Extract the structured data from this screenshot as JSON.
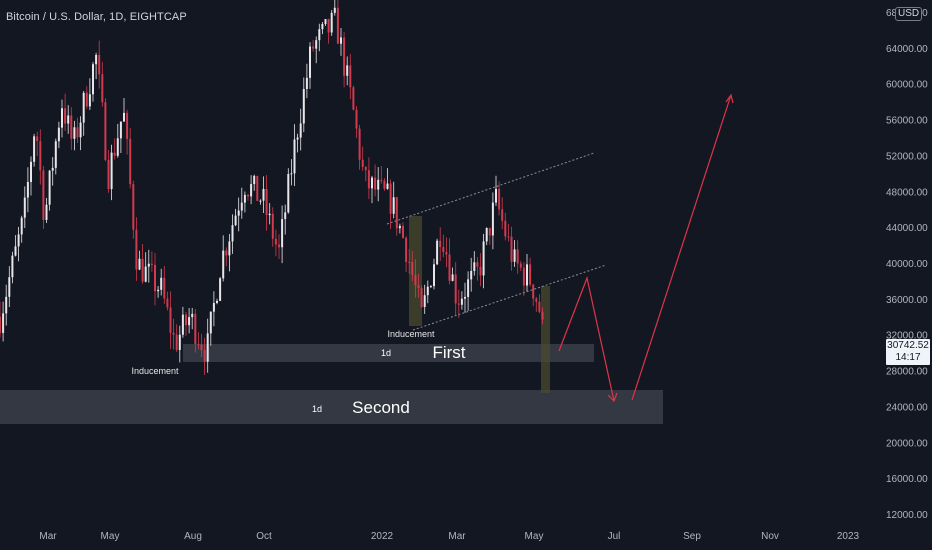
{
  "header": {
    "symbol_title": "Bitcoin / U.S. Dollar, 1D, EIGHTCAP",
    "currency": "USD"
  },
  "last_price": {
    "value": "30742.52",
    "countdown": "14:17"
  },
  "colors": {
    "background": "#131722",
    "candle_up": "#e8e6ea",
    "candle_down": "#d23a4e",
    "drawing": "#e03349",
    "zone": "#3a3d46",
    "axis_text": "#b2b5be"
  },
  "chart_data": {
    "type": "candlestick",
    "title": "Bitcoin / U.S. Dollar, 1D, EIGHTCAP",
    "x_ticks": [
      "Mar",
      "May",
      "Aug",
      "Oct",
      "2022",
      "Mar",
      "May",
      "Jul",
      "Sep",
      "Nov",
      "2023"
    ],
    "y_ticks": [
      "68000.00",
      "64000.00",
      "60000.00",
      "56000.00",
      "52000.00",
      "48000.00",
      "44000.00",
      "40000.00",
      "36000.00",
      "32000.00",
      "28000.00",
      "24000.00",
      "20000.00",
      "16000.00",
      "12000.00"
    ],
    "ylim": [
      12000,
      68000
    ],
    "series_close": [
      {
        "date": "2021-01-20",
        "value": 34000
      },
      {
        "date": "2021-02-10",
        "value": 45000
      },
      {
        "date": "2021-02-20",
        "value": 56000
      },
      {
        "date": "2021-02-28",
        "value": 45000
      },
      {
        "date": "2021-03-15",
        "value": 58000
      },
      {
        "date": "2021-03-25",
        "value": 53000
      },
      {
        "date": "2021-04-14",
        "value": 63000
      },
      {
        "date": "2021-04-25",
        "value": 50000
      },
      {
        "date": "2021-05-08",
        "value": 57000
      },
      {
        "date": "2021-05-20",
        "value": 40000
      },
      {
        "date": "2021-06-10",
        "value": 37000
      },
      {
        "date": "2021-06-22",
        "value": 31000
      },
      {
        "date": "2021-07-05",
        "value": 34000
      },
      {
        "date": "2021-07-20",
        "value": 30000
      },
      {
        "date": "2021-08-01",
        "value": 40000
      },
      {
        "date": "2021-08-22",
        "value": 49000
      },
      {
        "date": "2021-09-07",
        "value": 47000
      },
      {
        "date": "2021-09-21",
        "value": 41000
      },
      {
        "date": "2021-10-06",
        "value": 54000
      },
      {
        "date": "2021-10-20",
        "value": 64000
      },
      {
        "date": "2021-11-10",
        "value": 67000
      },
      {
        "date": "2021-11-25",
        "value": 57000
      },
      {
        "date": "2021-12-05",
        "value": 49000
      },
      {
        "date": "2021-12-28",
        "value": 47000
      },
      {
        "date": "2022-01-10",
        "value": 42000
      },
      {
        "date": "2022-01-24",
        "value": 34000
      },
      {
        "date": "2022-02-10",
        "value": 44000
      },
      {
        "date": "2022-02-24",
        "value": 36000
      },
      {
        "date": "2022-03-15",
        "value": 39000
      },
      {
        "date": "2022-03-30",
        "value": 47000
      },
      {
        "date": "2022-04-15",
        "value": 40000
      },
      {
        "date": "2022-04-30",
        "value": 38000
      },
      {
        "date": "2022-05-07",
        "value": 35000
      },
      {
        "date": "2022-05-12",
        "value": 30500
      }
    ],
    "annotations": {
      "inducement_labels": [
        "Inducement",
        "Inducement"
      ],
      "zones": [
        {
          "timeframe": "1d",
          "label": "First",
          "from": 28000,
          "to": 29800
        },
        {
          "timeframe": "1d",
          "label": "Second",
          "from": 22000,
          "to": 25800
        }
      ],
      "projected_path": [
        {
          "date": "2022-05-15",
          "value": 29500
        },
        {
          "date": "2022-06-08",
          "value": 38500
        },
        {
          "date": "2022-07-02",
          "value": 24500
        },
        {
          "date": "2022-07-10",
          "value": 25000
        },
        {
          "date": "2022-10-05",
          "value": 59000
        }
      ]
    }
  }
}
